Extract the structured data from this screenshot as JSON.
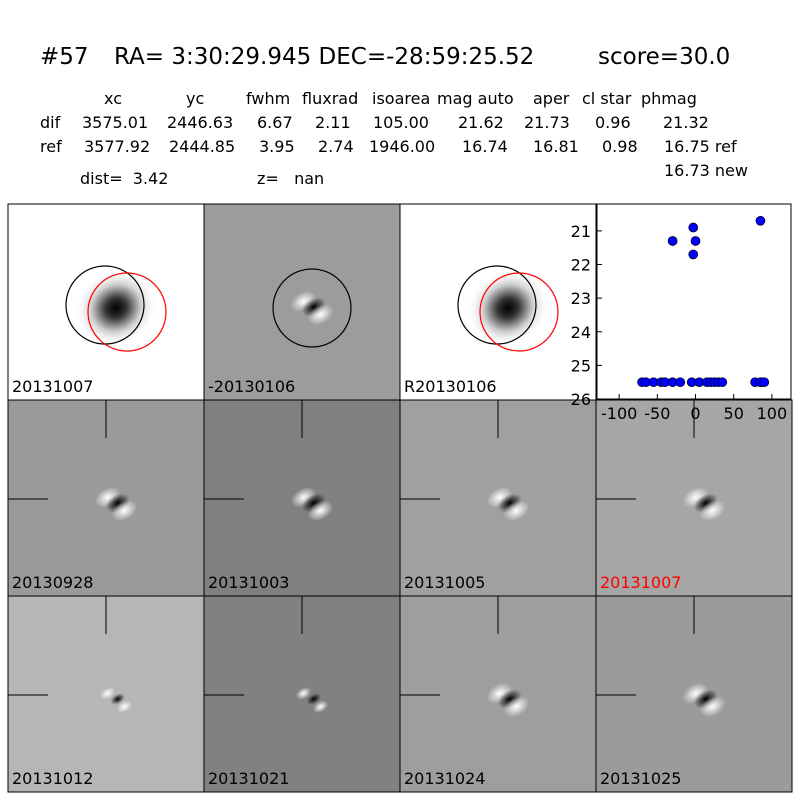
{
  "header": {
    "id": "#57",
    "coords": "RA= 3:30:29.945 DEC=-28:59:25.52",
    "score": "score=30.0"
  },
  "table": {
    "columns": [
      "xc",
      "yc",
      "fwhm",
      "fluxrad",
      "isoarea",
      "mag auto",
      "aper",
      "cl star",
      "phmag"
    ],
    "rows": [
      [
        "dif",
        "3575.01",
        "2446.63",
        "6.67",
        "2.11",
        "105.00",
        "21.62",
        "21.73",
        "0.96",
        "21.32"
      ],
      [
        "ref",
        "3577.92",
        "2444.85",
        "3.95",
        "2.74",
        "1946.00",
        "16.74",
        "16.81",
        "0.98",
        "16.75 ref"
      ]
    ],
    "extra": "16.73 new"
  },
  "dist": "dist=  3.42",
  "z": "z=   nan",
  "stamps": [
    {
      "label": "20131007",
      "label_color": "#000000"
    },
    {
      "label": "-20130106",
      "label_color": "#000000"
    },
    {
      "label": "R20130106",
      "label_color": "#000000"
    },
    {
      "label": "20130928",
      "label_color": "#000000"
    },
    {
      "label": "20131003",
      "label_color": "#000000"
    },
    {
      "label": "20131005",
      "label_color": "#000000"
    },
    {
      "label": "20131007",
      "label_color": "#ff0000"
    },
    {
      "label": "20131012",
      "label_color": "#000000"
    },
    {
      "label": "20131021",
      "label_color": "#000000"
    },
    {
      "label": "20131024",
      "label_color": "#000000"
    },
    {
      "label": "20131025",
      "label_color": "#000000"
    }
  ],
  "chart_data": {
    "type": "scatter",
    "color": "#0000ff",
    "x": [
      -70,
      -65,
      -55,
      -45,
      -40,
      -30,
      -20,
      -5,
      5,
      15,
      20,
      25,
      30,
      35,
      78,
      85,
      90,
      -30,
      -3,
      0,
      -3,
      85
    ],
    "values": [
      25.5,
      25.5,
      25.5,
      25.5,
      25.5,
      25.5,
      25.5,
      25.5,
      25.5,
      25.5,
      25.5,
      25.5,
      25.5,
      25.5,
      25.5,
      25.5,
      25.5,
      21.3,
      20.9,
      21.3,
      21.7,
      20.7
    ],
    "xlim": [
      -129,
      125
    ],
    "ylim": [
      26,
      20.2
    ],
    "xticks": [
      -100,
      -50,
      0,
      50,
      100
    ],
    "yticks": [
      21,
      22,
      23,
      24,
      25,
      26
    ]
  }
}
